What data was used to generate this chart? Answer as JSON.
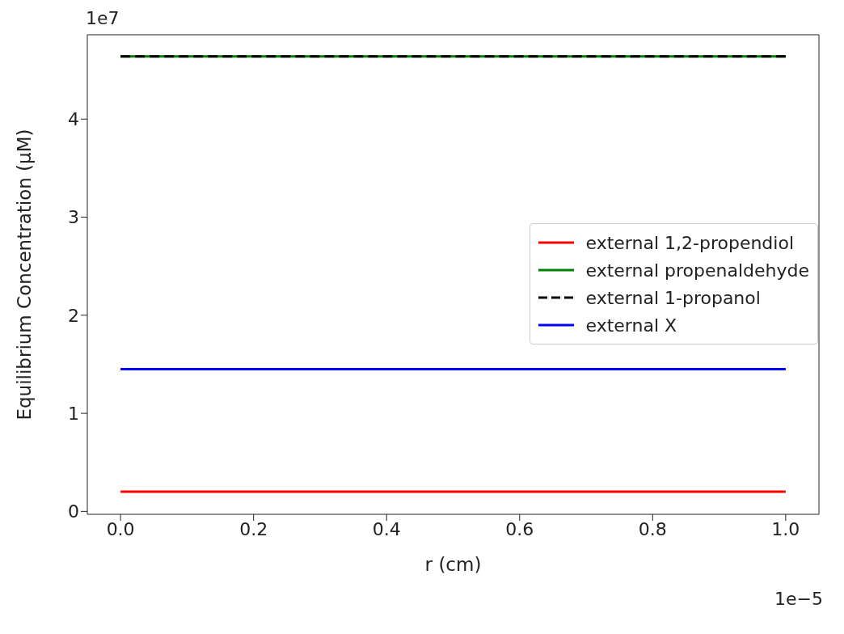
{
  "chart_data": {
    "type": "line",
    "xlabel": "r (cm)",
    "ylabel": "Equilibrium Concentration (μM)",
    "x": [
      0,
      1
    ],
    "series": [
      {
        "name": "external 1,2-propendiol",
        "color": "#ff0000",
        "values": [
          0.2,
          0.2
        ]
      },
      {
        "name": "external propenaldehyde",
        "color": "#008000",
        "values": [
          4.64,
          4.64
        ]
      },
      {
        "name": "external 1-propanol",
        "color": "#000000",
        "values": [
          4.64,
          4.64
        ],
        "line_style": "dashed"
      },
      {
        "name": "external X",
        "color": "#0000ff",
        "values": [
          1.45,
          1.45
        ]
      }
    ],
    "xlim": [
      -0.05,
      1.05
    ],
    "xticks": [
      {
        "value": 0,
        "label": "0.0"
      },
      {
        "value": 0.2,
        "label": "0.2"
      },
      {
        "value": 0.4,
        "label": "0.4"
      },
      {
        "value": 0.6,
        "label": "0.6"
      },
      {
        "value": 0.8,
        "label": "0.8"
      },
      {
        "value": 1,
        "label": "1.0"
      }
    ],
    "ylim": [
      -0.03,
      4.86
    ],
    "yticks": [
      0,
      1,
      2,
      3,
      4
    ],
    "annotations": [
      "1e7",
      "1e−5"
    ],
    "legend": "right",
    "grid": false,
    "marker": "none",
    "line_style": "solid"
  }
}
